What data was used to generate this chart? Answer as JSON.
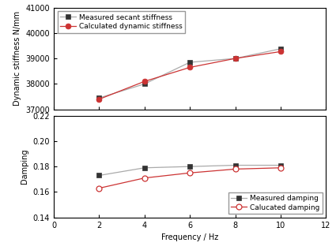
{
  "freq": [
    2,
    4,
    6,
    8,
    10
  ],
  "stiffness_measured": [
    37450,
    38000,
    38850,
    39000,
    39380
  ],
  "stiffness_calculated": [
    37400,
    38100,
    38650,
    39000,
    39270
  ],
  "damping_measured": [
    0.173,
    0.179,
    0.18,
    0.181,
    0.181
  ],
  "damping_calculated": [
    0.163,
    0.171,
    0.175,
    0.178,
    0.179
  ],
  "stiffness_ylim": [
    37000,
    41000
  ],
  "stiffness_yticks": [
    37000,
    38000,
    39000,
    40000,
    41000
  ],
  "damping_ylim": [
    0.14,
    0.22
  ],
  "damping_yticks": [
    0.14,
    0.16,
    0.18,
    0.2,
    0.22
  ],
  "xlim": [
    0,
    12
  ],
  "xticks": [
    0,
    2,
    4,
    6,
    8,
    10,
    12
  ],
  "xlabel": "Frequency / Hz",
  "ylabel_top": "Dynamic stiffness N/mm",
  "ylabel_bottom": "Damping",
  "legend_top": [
    "Measured secant stiffness",
    "Calculated dynamic stiffness"
  ],
  "legend_bottom": [
    "Measured damping",
    "Calucated damping"
  ],
  "line_color_measured": "#aaaaaa",
  "line_color_calculated": "#cc3333",
  "marker_color_measured_face": "#333333",
  "marker_color_measured_edge": "#333333",
  "marker_size_sq": 5,
  "marker_size_circ": 5
}
